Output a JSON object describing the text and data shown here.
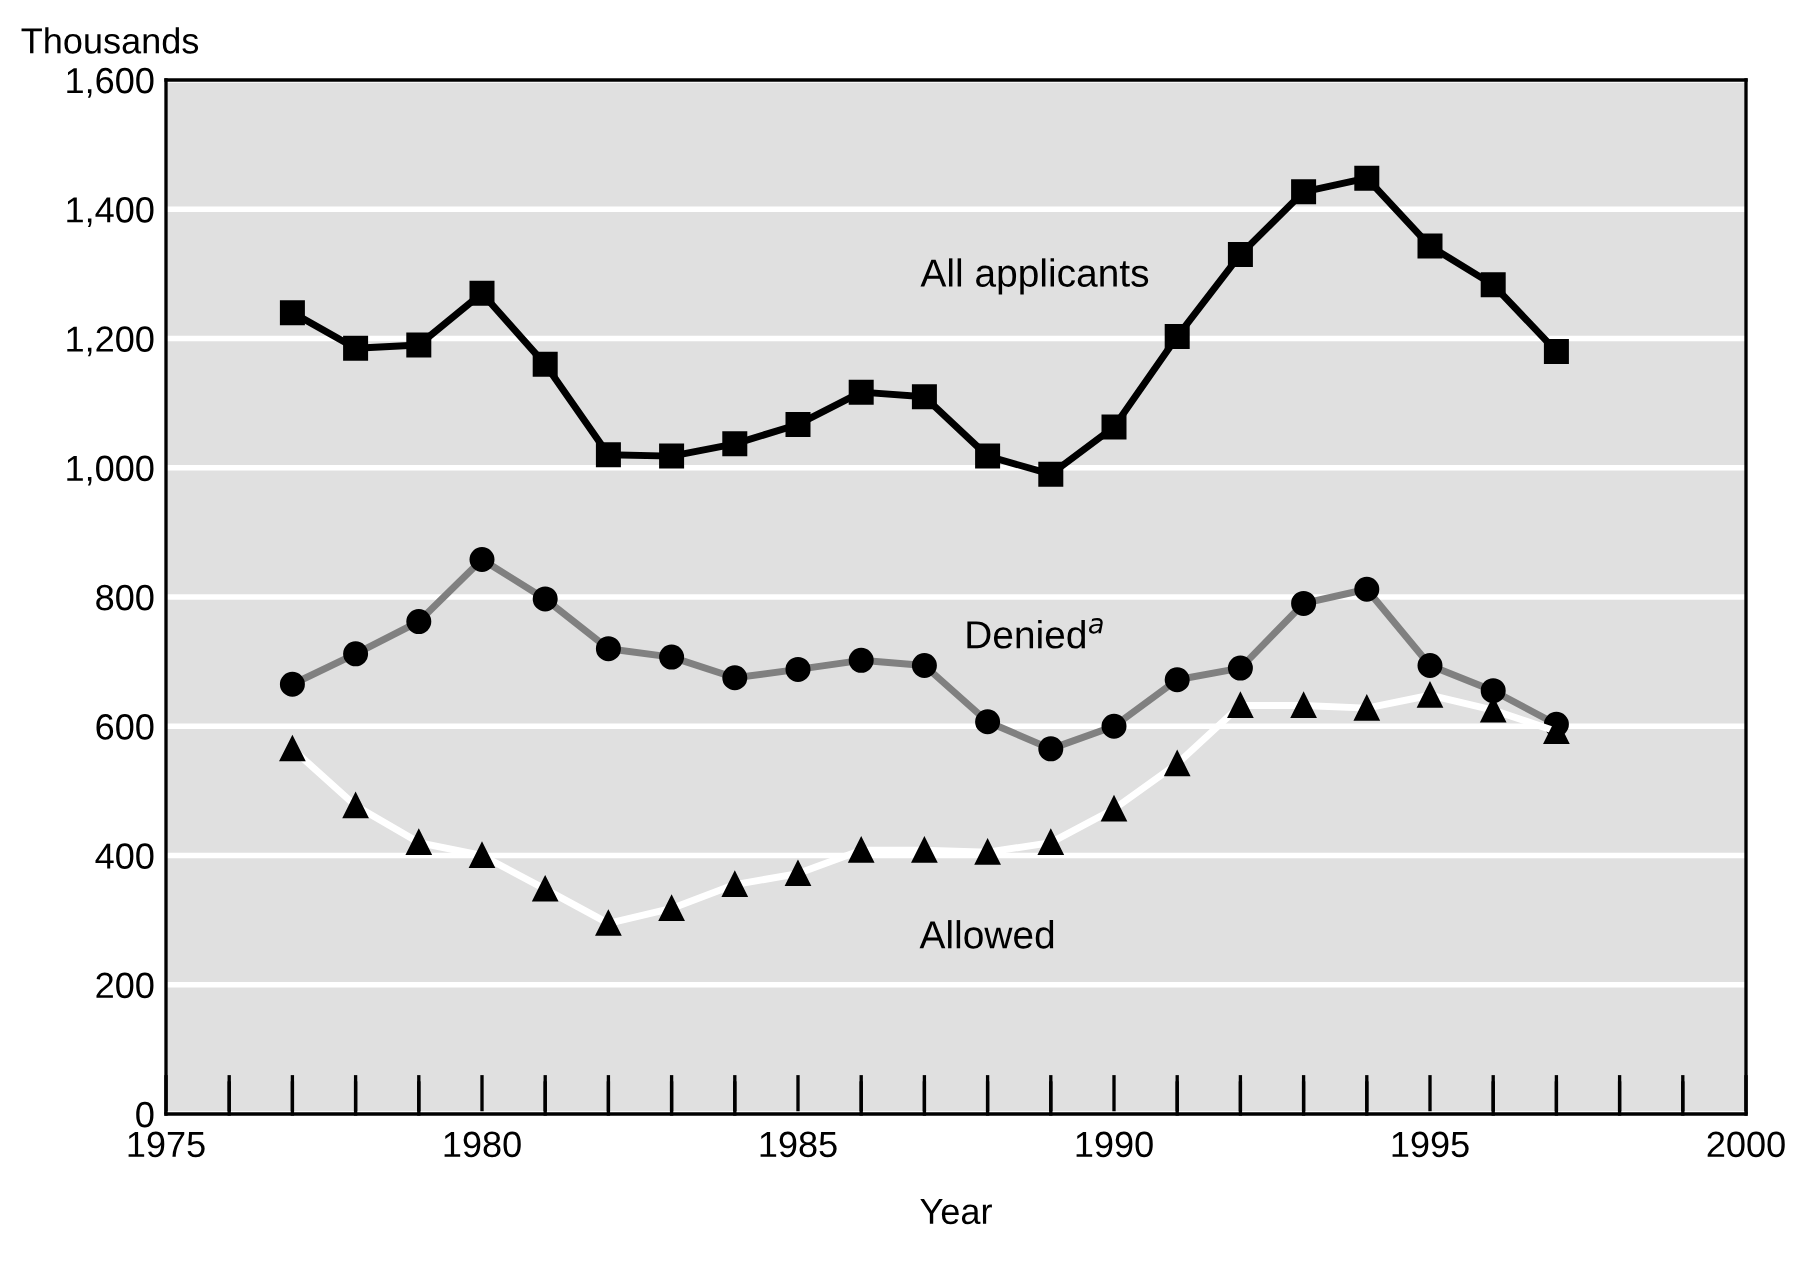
{
  "chart_data": {
    "type": "line",
    "ylabel": "Thousands",
    "xlabel": "Year",
    "x": [
      1977,
      1978,
      1979,
      1980,
      1981,
      1982,
      1983,
      1984,
      1985,
      1986,
      1987,
      1988,
      1989,
      1990,
      1991,
      1992,
      1993,
      1994,
      1995,
      1996,
      1997
    ],
    "series": [
      {
        "name": "All applicants",
        "color": "#000000",
        "marker": "square",
        "values": [
          1240,
          1185,
          1190,
          1270,
          1160,
          1020,
          1018,
          1037,
          1067,
          1117,
          1110,
          1018,
          990,
          1063,
          1203,
          1330,
          1427,
          1448,
          1343,
          1283,
          1180
        ]
      },
      {
        "name": "Denied$^{a}$",
        "color": "#808080",
        "marker": "circle",
        "values": [
          665,
          712,
          762,
          858,
          797,
          720,
          707,
          675,
          688,
          702,
          694,
          607,
          565,
          600,
          672,
          690,
          790,
          812,
          694,
          655,
          603
        ]
      },
      {
        "name": "Allowed",
        "color": "#ffffff",
        "marker": "triangle",
        "values": [
          565,
          477,
          420,
          400,
          348,
          295,
          318,
          355,
          372,
          408,
          408,
          405,
          420,
          472,
          542,
          632,
          632,
          628,
          648,
          625,
          592
        ]
      }
    ],
    "xlim": [
      1975,
      2000
    ],
    "xticks": [
      1975,
      {
        "value": 1976,
        "label": null
      },
      {
        "value": 1977,
        "label": null
      },
      {
        "value": 1978,
        "label": null
      },
      {
        "value": 1979,
        "label": null
      },
      1980,
      {
        "value": 1981,
        "label": null
      },
      {
        "value": 1982,
        "label": null
      },
      {
        "value": 1983,
        "label": null
      },
      {
        "value": 1984,
        "label": null
      },
      1985,
      {
        "value": 1986,
        "label": null
      },
      {
        "value": 1987,
        "label": null
      },
      {
        "value": 1988,
        "label": null
      },
      {
        "value": 1989,
        "label": null
      },
      1990,
      {
        "value": 1991,
        "label": null
      },
      {
        "value": 1992,
        "label": null
      },
      {
        "value": 1993,
        "label": null
      },
      {
        "value": 1994,
        "label": null
      },
      1995,
      {
        "value": 1996,
        "label": null
      },
      {
        "value": 1997,
        "label": null
      },
      {
        "value": 1998,
        "label": null
      },
      {
        "value": 1999,
        "label": null
      },
      2000
    ],
    "ylim": [
      0,
      1600
    ],
    "yticks": [
      {
        "value": 0,
        "label": "0"
      },
      {
        "value": 200,
        "label": "200"
      },
      {
        "value": 400,
        "label": "400"
      },
      {
        "value": 600,
        "label": "600"
      },
      {
        "value": 800,
        "label": "800"
      },
      {
        "value": 1000,
        "label": "1,000"
      },
      {
        "value": 1200,
        "label": "1,200"
      },
      {
        "value": 1400,
        "label": "1,400"
      },
      {
        "value": 1600,
        "label": "1,600"
      }
    ],
    "grid": "y",
    "legend": false
  }
}
